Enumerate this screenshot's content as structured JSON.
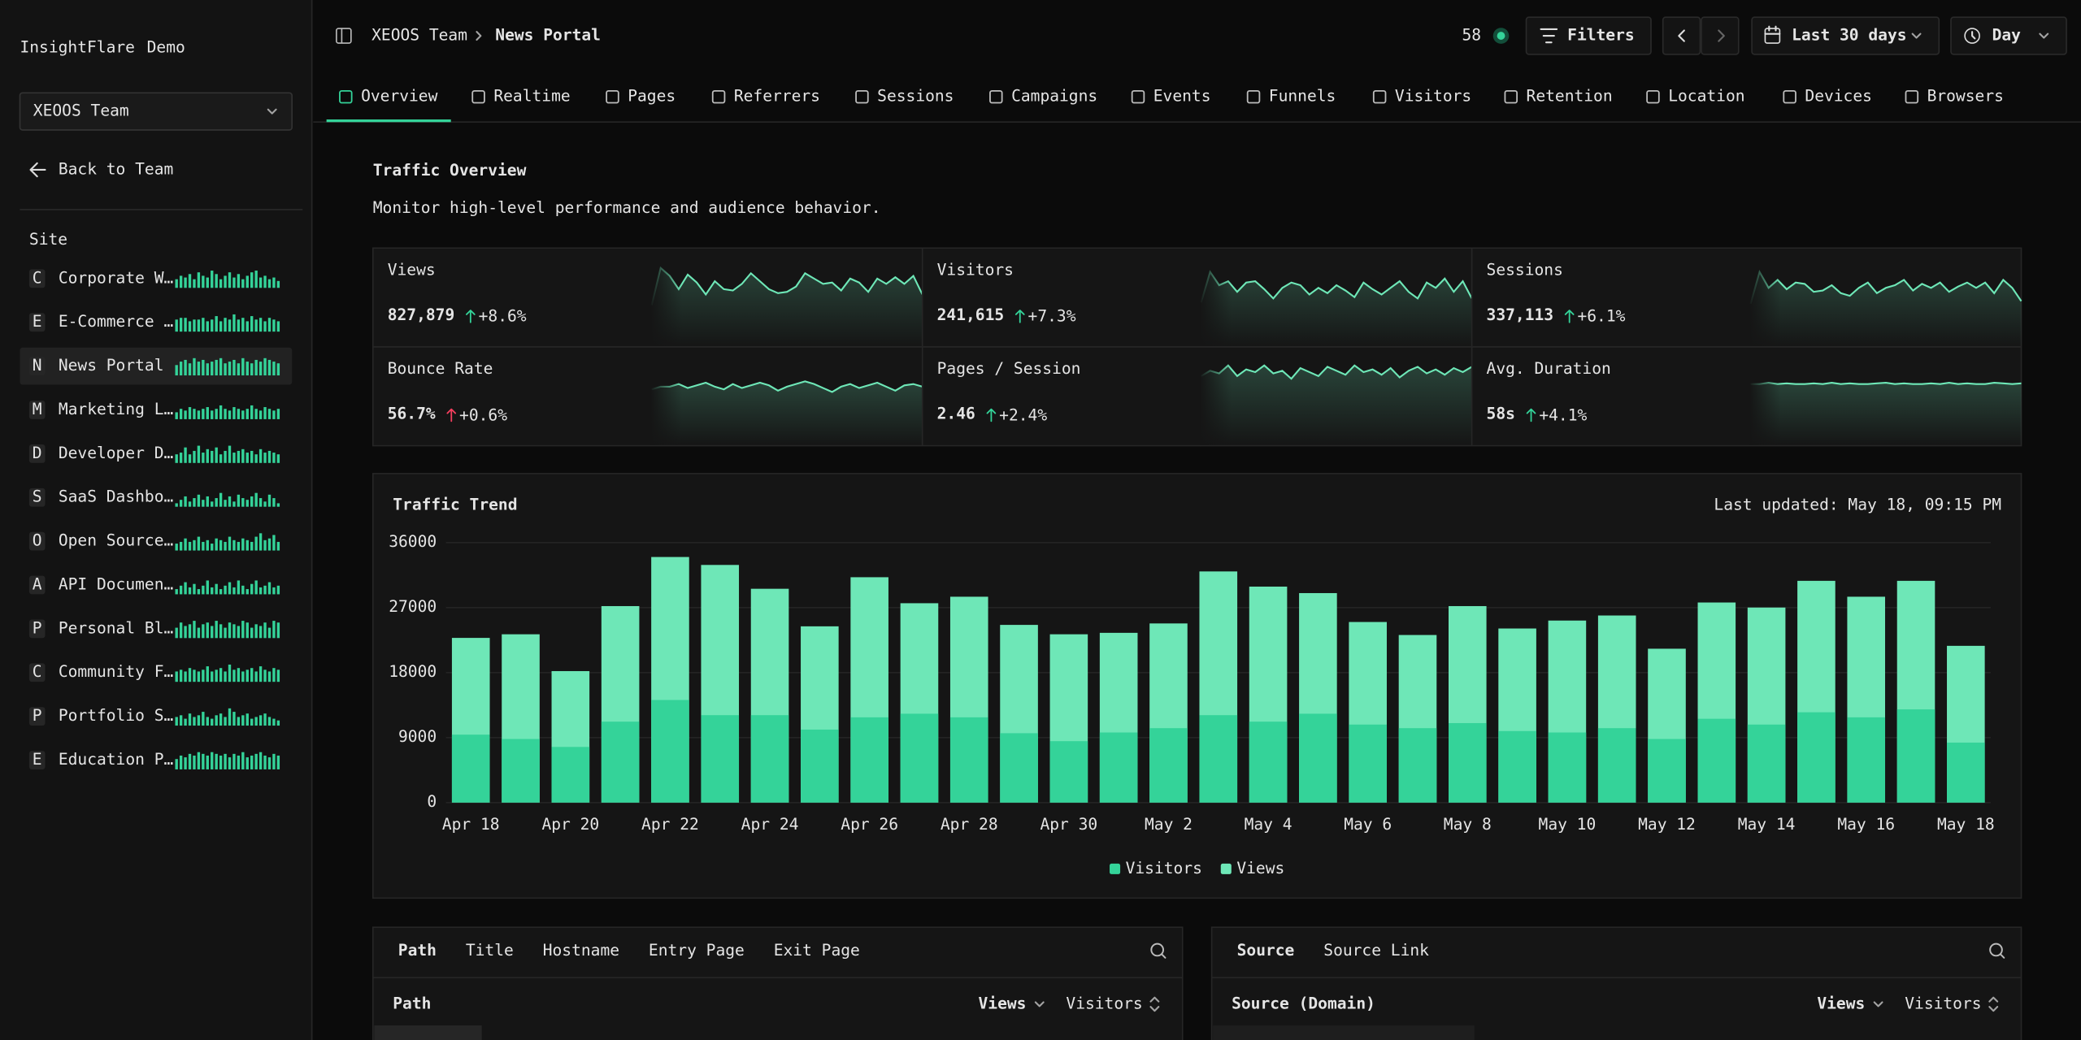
{
  "sidebar": {
    "brand": "InsightFlare",
    "brand_suffix": "Demo",
    "team": "XEOOS Team",
    "back": "Back to Team",
    "section": "Site",
    "active": 2,
    "sites": [
      {
        "letter": "C",
        "name": "Corporate W…",
        "bars": [
          5,
          7,
          6,
          8,
          5,
          9,
          7,
          6,
          10,
          8,
          5,
          7,
          9,
          6,
          8,
          5,
          7,
          9,
          10,
          6,
          7,
          5,
          6,
          4
        ]
      },
      {
        "letter": "E",
        "name": "E-Commerce …",
        "bars": [
          7,
          8,
          8,
          6,
          7,
          7,
          8,
          6,
          7,
          9,
          6,
          8,
          7,
          10,
          7,
          8,
          6,
          9,
          7,
          8,
          6,
          8,
          7,
          6
        ]
      },
      {
        "letter": "N",
        "name": "News Portal",
        "bars": [
          6,
          8,
          9,
          7,
          10,
          8,
          9,
          7,
          8,
          9,
          10,
          7,
          8,
          9,
          7,
          10,
          8,
          7,
          9,
          8,
          10,
          9,
          8,
          7
        ]
      },
      {
        "letter": "M",
        "name": "Marketing L…",
        "bars": [
          4,
          6,
          5,
          7,
          6,
          5,
          6,
          7,
          5,
          6,
          8,
          6,
          5,
          7,
          6,
          5,
          6,
          8,
          6,
          5,
          7,
          6,
          5,
          6
        ]
      },
      {
        "letter": "D",
        "name": "Developer D…",
        "bars": [
          5,
          6,
          9,
          5,
          7,
          10,
          6,
          8,
          7,
          9,
          5,
          7,
          10,
          6,
          7,
          8,
          6,
          7,
          5,
          8,
          6,
          7,
          6,
          5
        ]
      },
      {
        "letter": "S",
        "name": "SaaS Dashbo…",
        "bars": [
          2,
          4,
          6,
          3,
          5,
          7,
          4,
          6,
          3,
          5,
          8,
          4,
          6,
          3,
          7,
          5,
          4,
          6,
          8,
          5,
          3,
          7,
          5,
          2
        ]
      },
      {
        "letter": "O",
        "name": "Open Source…",
        "bars": [
          4,
          5,
          7,
          5,
          6,
          8,
          5,
          6,
          4,
          7,
          6,
          5,
          8,
          6,
          5,
          7,
          6,
          5,
          8,
          10,
          6,
          7,
          9,
          5
        ]
      },
      {
        "letter": "A",
        "name": "API Documen…",
        "bars": [
          3,
          5,
          7,
          4,
          6,
          3,
          5,
          8,
          4,
          6,
          3,
          5,
          7,
          4,
          8,
          5,
          3,
          6,
          8,
          4,
          5,
          7,
          4,
          5
        ]
      },
      {
        "letter": "P",
        "name": "Personal Bl…",
        "bars": [
          6,
          9,
          7,
          8,
          10,
          6,
          8,
          9,
          7,
          10,
          8,
          6,
          9,
          8,
          7,
          10,
          9,
          6,
          8,
          7,
          9,
          6,
          10,
          9
        ]
      },
      {
        "letter": "C",
        "name": "Community F…",
        "bars": [
          6,
          7,
          6,
          8,
          7,
          6,
          7,
          9,
          6,
          7,
          8,
          6,
          10,
          7,
          8,
          6,
          7,
          8,
          6,
          9,
          7,
          6,
          8,
          7
        ]
      },
      {
        "letter": "P",
        "name": "Portfolio S…",
        "bars": [
          5,
          6,
          4,
          7,
          5,
          6,
          8,
          5,
          4,
          6,
          7,
          5,
          10,
          8,
          5,
          6,
          7,
          4,
          5,
          6,
          7,
          5,
          4,
          3
        ]
      },
      {
        "letter": "E",
        "name": "Education P…",
        "bars": [
          6,
          8,
          7,
          9,
          8,
          10,
          9,
          8,
          10,
          9,
          8,
          9,
          7,
          9,
          8,
          10,
          7,
          8,
          9,
          10,
          8,
          7,
          9,
          8
        ]
      }
    ]
  },
  "topbar": {
    "team": "XEOOS Team",
    "page": "News Portal",
    "online": 58,
    "filters": "Filters",
    "range": "Last 30 days",
    "interval": "Day"
  },
  "tabs": {
    "active": 0,
    "items": [
      "Overview",
      "Realtime",
      "Pages",
      "Referrers",
      "Sessions",
      "Campaigns",
      "Events",
      "Funnels",
      "Visitors",
      "Retention",
      "Location",
      "Devices",
      "Browsers"
    ]
  },
  "header": {
    "title": "Traffic Overview",
    "subtitle": "Monitor high-level performance and audience behavior."
  },
  "kpis": [
    {
      "label": "Views",
      "value": "827,879",
      "change": "+8.6%",
      "sentiment": "positive",
      "spark": [
        14,
        70,
        58,
        38,
        60,
        48,
        30,
        50,
        38,
        36,
        46,
        62,
        50,
        38,
        32,
        34,
        42,
        62,
        54,
        46,
        48,
        36,
        54,
        48,
        34,
        54,
        46,
        56,
        46,
        58,
        30
      ]
    },
    {
      "label": "Visitors",
      "value": "241,615",
      "change": "+7.3%",
      "sentiment": "positive",
      "spark": [
        18,
        64,
        44,
        50,
        34,
        48,
        50,
        38,
        24,
        40,
        48,
        44,
        30,
        40,
        32,
        44,
        36,
        26,
        48,
        38,
        30,
        40,
        50,
        34,
        24,
        48,
        40,
        54,
        34,
        50,
        24
      ]
    },
    {
      "label": "Sessions",
      "value": "337,113",
      "change": "+6.1%",
      "sentiment": "positive",
      "spark": [
        16,
        64,
        40,
        52,
        38,
        48,
        46,
        34,
        36,
        44,
        32,
        28,
        40,
        48,
        32,
        40,
        44,
        52,
        36,
        46,
        40,
        48,
        34,
        42,
        48,
        40,
        48,
        32,
        52,
        40,
        20
      ]
    },
    {
      "label": "Bounce Rate",
      "value": "56.7%",
      "change": "+0.6%",
      "sentiment": "negative",
      "spark": [
        36,
        40,
        40,
        44,
        38,
        42,
        46,
        40,
        36,
        44,
        38,
        42,
        46,
        42,
        34,
        40,
        44,
        48,
        44,
        38,
        32,
        40,
        44,
        38,
        42,
        46,
        40,
        34,
        42,
        44,
        40
      ]
    },
    {
      "label": "Pages / Session",
      "value": "2.46",
      "change": "+2.4%",
      "sentiment": "positive",
      "spark": [
        56,
        64,
        60,
        72,
        56,
        66,
        62,
        72,
        60,
        64,
        52,
        68,
        62,
        56,
        70,
        64,
        58,
        72,
        62,
        66,
        58,
        68,
        54,
        64,
        70,
        60,
        66,
        58,
        68,
        62,
        70
      ]
    },
    {
      "label": "Avg. Duration",
      "value": "58s",
      "change": "+4.1%",
      "sentiment": "positive",
      "spark": [
        44,
        44,
        46,
        44,
        45,
        44,
        44,
        45,
        44,
        46,
        44,
        45,
        44,
        44,
        45,
        46,
        44,
        45,
        44,
        44,
        45,
        44,
        46,
        44,
        45,
        44,
        44,
        46,
        45,
        44,
        45
      ]
    }
  ],
  "chart_data": {
    "type": "bar",
    "title": "Traffic Trend",
    "note": "Last updated: May 18, 09:15 PM",
    "categories": [
      "Apr 18",
      null,
      "Apr 20",
      null,
      "Apr 22",
      null,
      "Apr 24",
      null,
      "Apr 26",
      null,
      "Apr 28",
      null,
      "Apr 30",
      null,
      "May 2",
      null,
      "May 4",
      null,
      "May 6",
      null,
      "May 8",
      null,
      "May 10",
      null,
      "May 12",
      null,
      "May 14",
      null,
      "May 16",
      null,
      "May 18"
    ],
    "series": [
      {
        "name": "Visitors",
        "color": "#34d399",
        "values": [
          9400,
          8800,
          7700,
          11200,
          14200,
          12100,
          12100,
          10100,
          11800,
          12300,
          11800,
          9600,
          8500,
          9700,
          10300,
          12100,
          11200,
          12300,
          10800,
          10300,
          11000,
          9900,
          9700,
          10300,
          8800,
          11600,
          10800,
          12500,
          11800,
          12900,
          8300
        ]
      },
      {
        "name": "Views",
        "color": "#6ee7b7",
        "values": [
          22800,
          23300,
          18200,
          27200,
          34000,
          32900,
          29600,
          24400,
          31200,
          27600,
          28500,
          24600,
          23300,
          23500,
          24800,
          32000,
          29900,
          29000,
          25000,
          23200,
          27200,
          24100,
          25200,
          25900,
          21300,
          27700,
          27000,
          30700,
          28500,
          30700,
          21700
        ]
      }
    ],
    "ylim": [
      0,
      36000
    ],
    "yticks": [
      0,
      9000,
      18000,
      27000,
      36000
    ],
    "grid": true
  },
  "panels": [
    {
      "tabs": [
        "Path",
        "Title",
        "Hostname",
        "Entry Page",
        "Exit Page"
      ],
      "column": "Path",
      "metrics": [
        "Views",
        "Visitors"
      ]
    },
    {
      "tabs": [
        "Source",
        "Source Link"
      ],
      "column": "Source (Domain)",
      "metrics": [
        "Views",
        "Visitors"
      ]
    }
  ]
}
